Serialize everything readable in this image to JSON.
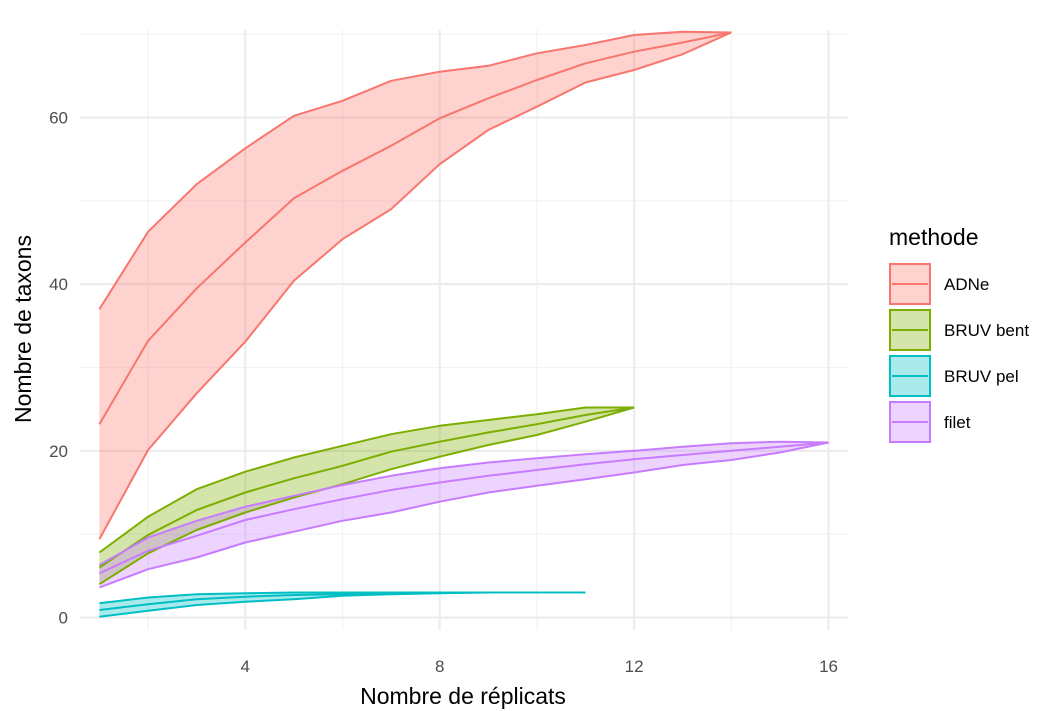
{
  "chart_data": {
    "type": "area",
    "xlabel": "Nombre de réplicats",
    "ylabel": "Nombre de taxons",
    "xlim": [
      0.6,
      16.4
    ],
    "ylim": [
      -1.5,
      70.5
    ],
    "xticks": [
      4,
      8,
      12,
      16
    ],
    "yticks": [
      0,
      20,
      40,
      60
    ],
    "xtick_labels": [
      "4",
      "8",
      "12",
      "16"
    ],
    "ytick_labels": [
      "0",
      "20",
      "40",
      "60"
    ],
    "grid": true,
    "legend": {
      "title": "methode",
      "position": "right"
    },
    "series": [
      {
        "name": "ADNe",
        "color": "#F8766D",
        "x": [
          1,
          2,
          3,
          4,
          5,
          6,
          7,
          8,
          9,
          10,
          11,
          12,
          13,
          14
        ],
        "mean": [
          23.2,
          33.2,
          39.5,
          45,
          50.3,
          53.6,
          56.6,
          59.9,
          62.3,
          64.5,
          66.5,
          67.9,
          69,
          70.2
        ],
        "lower": [
          9.4,
          20.1,
          26.9,
          33.1,
          40.4,
          45.4,
          49,
          54.4,
          58.5,
          61.3,
          64.2,
          65.7,
          67.6,
          70.2
        ],
        "upper": [
          37,
          46.3,
          52,
          56.3,
          60.2,
          62,
          64.4,
          65.5,
          66.2,
          67.7,
          68.7,
          69.9,
          70.3,
          70.2
        ]
      },
      {
        "name": "BRUV bent",
        "color": "#7CAE00",
        "x": [
          1,
          2,
          3,
          4,
          5,
          6,
          7,
          8,
          9,
          10,
          11,
          12
        ],
        "mean": [
          6,
          9.9,
          12.9,
          15,
          16.7,
          18.2,
          19.9,
          21.1,
          22.2,
          23.2,
          24.3,
          25.2
        ],
        "lower": [
          4,
          7.7,
          10.5,
          12.6,
          14.4,
          16,
          17.8,
          19.3,
          20.7,
          21.9,
          23.5,
          25.2
        ],
        "upper": [
          7.8,
          12.1,
          15.4,
          17.5,
          19.2,
          20.6,
          22,
          23,
          23.7,
          24.4,
          25.2,
          25.2
        ]
      },
      {
        "name": "BRUV pel",
        "color": "#00BFC4",
        "x": [
          1,
          2,
          3,
          4,
          5,
          6,
          7,
          8,
          9,
          10,
          11
        ],
        "mean": [
          0.9,
          1.6,
          2.2,
          2.5,
          2.7,
          2.8,
          2.9,
          3,
          3,
          3,
          3
        ],
        "lower": [
          0.1,
          0.8,
          1.5,
          1.9,
          2.2,
          2.6,
          2.8,
          2.9,
          3,
          3,
          3
        ],
        "upper": [
          1.7,
          2.4,
          2.8,
          2.9,
          3,
          3,
          3,
          3,
          3,
          3,
          3
        ]
      },
      {
        "name": "filet",
        "color": "#C77CFF",
        "x": [
          1,
          2,
          3,
          4,
          5,
          6,
          7,
          8,
          9,
          10,
          11,
          12,
          13,
          14,
          15,
          16
        ],
        "mean": [
          5.3,
          8,
          9.8,
          11.7,
          13,
          14.2,
          15.3,
          16.2,
          17,
          17.7,
          18.4,
          19,
          19.5,
          20,
          20.5,
          21
        ],
        "lower": [
          3.6,
          5.8,
          7.2,
          9,
          10.3,
          11.6,
          12.6,
          13.9,
          15,
          15.8,
          16.6,
          17.4,
          18.3,
          18.9,
          19.8,
          21
        ],
        "upper": [
          6.3,
          9.6,
          11.6,
          13.3,
          14.6,
          15.9,
          17,
          17.9,
          18.6,
          19.1,
          19.6,
          20,
          20.5,
          20.9,
          21.1,
          21
        ]
      }
    ]
  }
}
